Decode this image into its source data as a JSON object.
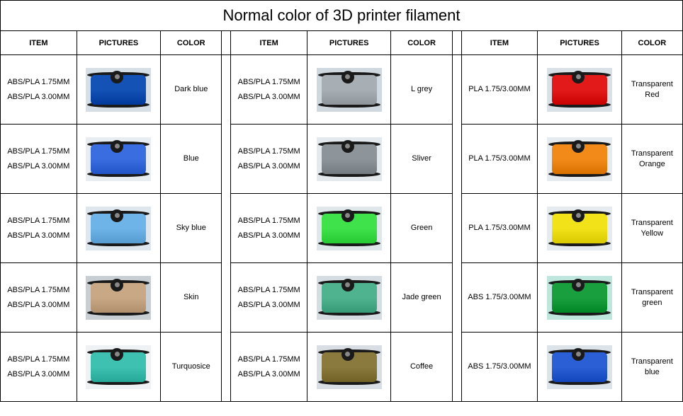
{
  "title": "Normal color of 3D printer filament",
  "headers": {
    "item": "ITEM",
    "pictures": "PICTURES",
    "color": "COLOR"
  },
  "cols": [
    {
      "rows": [
        {
          "item": {
            "l1": "ABS/PLA 1.75MM",
            "l2": "ABS/PLA 3.00MM"
          },
          "color": "Dark blue",
          "swatch": "#1452b5",
          "bg": "#d6dfe6"
        },
        {
          "item": {
            "l1": "ABS/PLA 1.75MM",
            "l2": "ABS/PLA 3.00MM"
          },
          "color": "Blue",
          "swatch": "#3a6de0",
          "bg": "#e8edf2"
        },
        {
          "item": {
            "l1": "ABS/PLA 1.75MM",
            "l2": "ABS/PLA 3.00MM"
          },
          "color": "Sky blue",
          "swatch": "#6fb4e8",
          "bg": "#dfe7ee"
        },
        {
          "item": {
            "l1": "ABS/PLA 1.75MM",
            "l2": "ABS/PLA 3.00MM"
          },
          "color": "Skin",
          "swatch": "#c9a886",
          "bg": "#c7cfd5"
        },
        {
          "item": {
            "l1": "ABS/PLA 1.75MM",
            "l2": "ABS/PLA 3.00MM"
          },
          "color": "Turquosice",
          "swatch": "#3fc1b2",
          "bg": "#eef2f4"
        }
      ]
    },
    {
      "rows": [
        {
          "item": {
            "l1": "ABS/PLA 1.75MM",
            "l2": "ABS/PLA 3.00MM"
          },
          "color": "L grey",
          "swatch": "#a7aeb4",
          "bg": "#d0d8df"
        },
        {
          "item": {
            "l1": "ABS/PLA 1.75MM",
            "l2": "ABS/PLA 3.00MM"
          },
          "color": "Sliver",
          "swatch": "#8d949a",
          "bg": "#e4e9ed"
        },
        {
          "item": {
            "l1": "ABS/PLA 1.75MM",
            "l2": "ABS/PLA 3.00MM"
          },
          "color": "Green",
          "swatch": "#3fe24a",
          "bg": "#dfe7ea"
        },
        {
          "item": {
            "l1": "ABS/PLA 1.75MM",
            "l2": "ABS/PLA 3.00MM"
          },
          "color": "Jade green",
          "swatch": "#4fb38f",
          "bg": "#d5dde2"
        },
        {
          "item": {
            "l1": "ABS/PLA 1.75MM",
            "l2": "ABS/PLA 3.00MM"
          },
          "color": "Coffee",
          "swatch": "#8a7a3e",
          "bg": "#d8dee3"
        }
      ]
    },
    {
      "rows": [
        {
          "item": {
            "l1": "PLA 1.75/3.00MM",
            "l2": ""
          },
          "color": "Transparent Red",
          "swatch": "#e21a1a",
          "bg": "#d9e1e6"
        },
        {
          "item": {
            "l1": "PLA 1.75/3.00MM",
            "l2": ""
          },
          "color": "Transparent Orange",
          "swatch": "#f28a1a",
          "bg": "#e5ebee"
        },
        {
          "item": {
            "l1": "PLA 1.75/3.00MM",
            "l2": ""
          },
          "color": "Transparent Yellow",
          "swatch": "#f2e21a",
          "bg": "#e5ebee"
        },
        {
          "item": {
            "l1": "ABS 1.75/3.00MM",
            "l2": ""
          },
          "color": "Transparent green",
          "swatch": "#1a9f3f",
          "bg": "#bfe6dd"
        },
        {
          "item": {
            "l1": "ABS 1.75/3.00MM",
            "l2": ""
          },
          "color": "Transparent blue",
          "swatch": "#2a5fd6",
          "bg": "#dce4e9"
        }
      ]
    }
  ]
}
